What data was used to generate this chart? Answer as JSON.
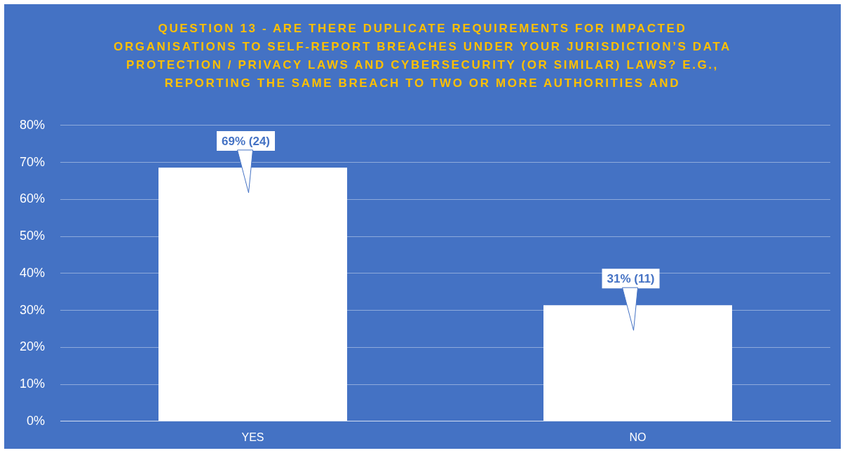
{
  "chart_data": {
    "type": "bar",
    "title": "QUESTION 13 - ARE THERE DUPLICATE REQUIREMENTS FOR IMPACTED ORGANISATIONS TO SELF-REPORT BREACHES UNDER YOUR JURISDICTION’S DATA PROTECTION / PRIVACY LAWS AND CYBERSECURITY (OR SIMILAR) LAWS? E.G., REPORTING THE SAME BREACH TO TWO OR MORE AUTHORITIES AND",
    "categories": [
      "YES",
      "NO"
    ],
    "values": [
      68.6,
      31.4
    ],
    "value_labels": [
      "69% (24)",
      "31% (11)"
    ],
    "color": "#ffffff",
    "ylim": [
      0,
      80
    ],
    "yticks": [
      {
        "value": 0,
        "label": "0%"
      },
      {
        "value": 10,
        "label": "10%"
      },
      {
        "value": 20,
        "label": "20%"
      },
      {
        "value": 30,
        "label": "30%"
      },
      {
        "value": 40,
        "label": "40%"
      },
      {
        "value": 50,
        "label": "50%"
      },
      {
        "value": 60,
        "label": "60%"
      },
      {
        "value": 70,
        "label": "70%"
      },
      {
        "value": 80,
        "label": "80%"
      }
    ],
    "grid": "y",
    "legend": false
  }
}
